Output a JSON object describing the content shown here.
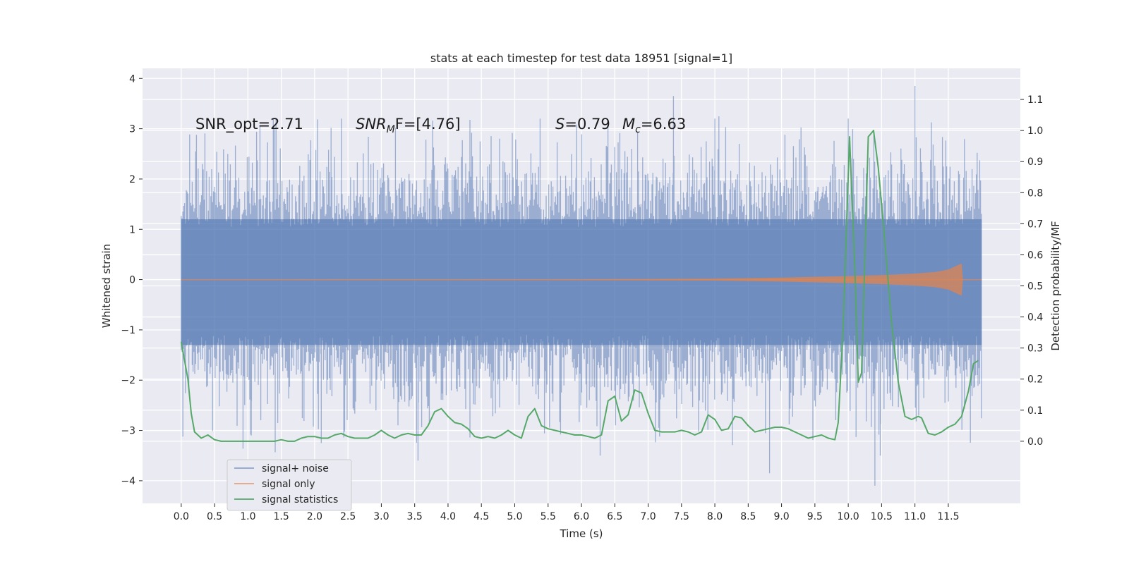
{
  "chart_data": {
    "type": "line",
    "title": "stats at each timestep for test data 18951 [signal=1]",
    "xlabel": "Time (s)",
    "ylabel": "Whitened strain",
    "ylabel_right": "Detection probability/MF",
    "xlim": [
      -0.58,
      12.58
    ],
    "ylim": [
      -4.45,
      4.2
    ],
    "ylim_right": [
      -0.2,
      1.2
    ],
    "x_ticks": [
      "0.0",
      "0.5",
      "1.0",
      "1.5",
      "2.0",
      "2.5",
      "3.0",
      "3.5",
      "4.0",
      "4.5",
      "5.0",
      "5.5",
      "6.0",
      "6.5",
      "7.0",
      "7.5",
      "8.0",
      "8.5",
      "9.0",
      "9.5",
      "10.0",
      "10.5",
      "11.0",
      "11.5"
    ],
    "y_ticks": [
      "4",
      "3",
      "2",
      "1",
      "0",
      "−1",
      "−2",
      "−3",
      "−4"
    ],
    "y_right_ticks": [
      "1.1",
      "1.0",
      "0.9",
      "0.8",
      "0.7",
      "0.6",
      "0.5",
      "0.4",
      "0.3",
      "0.2",
      "0.1",
      "0.0"
    ],
    "grid": true,
    "background": "#eaeaf2",
    "annotations": {
      "snr_opt": "SNR_opt=2.71",
      "snr_mf_main": "SNR",
      "snr_mf_sub": "M",
      "snr_mf_rest": "F=[4.76]",
      "s_var": "S",
      "s_val": "=0.79",
      "mc_var": "M",
      "mc_sub": "c",
      "mc_val": "=6.63"
    },
    "legend": {
      "position": "lower-left",
      "entries": [
        "signal+ noise",
        "signal only",
        "signal statistics"
      ]
    },
    "series": [
      {
        "name": "signal+ noise",
        "axis": "left",
        "color": "#4c72b0",
        "band": {
          "x_range": [
            0.0,
            12.0
          ],
          "core_range": [
            -1.3,
            1.2
          ],
          "typical_peak": 1.9,
          "max_observed": 3.85,
          "min_observed": -4.1
        }
      },
      {
        "name": "signal only",
        "axis": "left",
        "color": "#dd8452",
        "envelope": {
          "x": [
            0.0,
            2.0,
            4.0,
            6.0,
            8.0,
            9.0,
            10.0,
            10.5,
            11.0,
            11.3,
            11.5,
            11.6,
            11.7,
            11.72,
            12.0
          ],
          "amp": [
            0.0,
            0.003,
            0.005,
            0.008,
            0.02,
            0.04,
            0.07,
            0.09,
            0.12,
            0.15,
            0.2,
            0.26,
            0.32,
            0.0,
            0.0
          ]
        }
      },
      {
        "name": "signal statistics",
        "axis": "right",
        "color": "#55a868",
        "x": [
          0.0,
          0.1,
          0.15,
          0.2,
          0.3,
          0.4,
          0.5,
          0.6,
          0.7,
          0.8,
          0.9,
          1.0,
          1.1,
          1.2,
          1.3,
          1.4,
          1.5,
          1.6,
          1.7,
          1.8,
          1.9,
          2.0,
          2.1,
          2.2,
          2.3,
          2.4,
          2.5,
          2.6,
          2.7,
          2.8,
          2.9,
          3.0,
          3.1,
          3.2,
          3.3,
          3.4,
          3.5,
          3.6,
          3.7,
          3.8,
          3.9,
          4.0,
          4.1,
          4.2,
          4.3,
          4.4,
          4.5,
          4.6,
          4.7,
          4.8,
          4.9,
          5.0,
          5.1,
          5.2,
          5.3,
          5.4,
          5.5,
          5.6,
          5.7,
          5.8,
          5.9,
          6.0,
          6.1,
          6.2,
          6.3,
          6.4,
          6.5,
          6.6,
          6.7,
          6.8,
          6.9,
          7.0,
          7.1,
          7.2,
          7.3,
          7.4,
          7.5,
          7.6,
          7.7,
          7.8,
          7.9,
          8.0,
          8.1,
          8.2,
          8.3,
          8.4,
          8.5,
          8.6,
          8.7,
          8.8,
          8.9,
          9.0,
          9.1,
          9.2,
          9.3,
          9.4,
          9.5,
          9.6,
          9.7,
          9.8,
          9.85,
          9.92,
          10.02,
          10.1,
          10.15,
          10.2,
          10.3,
          10.38,
          10.45,
          10.55,
          10.65,
          10.75,
          10.85,
          10.95,
          11.05,
          11.1,
          11.15,
          11.2,
          11.3,
          11.4,
          11.5,
          11.6,
          11.7,
          11.8,
          11.88,
          11.95
        ],
        "y": [
          0.32,
          0.2,
          0.09,
          0.03,
          0.01,
          0.02,
          0.005,
          0.0,
          0.0,
          0.0,
          0.0,
          0.0,
          0.0,
          0.0,
          0.0,
          0.0,
          0.005,
          0.0,
          0.0,
          0.01,
          0.015,
          0.015,
          0.01,
          0.01,
          0.02,
          0.025,
          0.015,
          0.01,
          0.01,
          0.01,
          0.02,
          0.035,
          0.02,
          0.01,
          0.02,
          0.025,
          0.02,
          0.02,
          0.05,
          0.095,
          0.105,
          0.08,
          0.06,
          0.055,
          0.04,
          0.015,
          0.01,
          0.015,
          0.01,
          0.02,
          0.035,
          0.02,
          0.01,
          0.08,
          0.105,
          0.05,
          0.04,
          0.035,
          0.03,
          0.025,
          0.02,
          0.02,
          0.015,
          0.01,
          0.02,
          0.13,
          0.145,
          0.065,
          0.085,
          0.165,
          0.155,
          0.09,
          0.035,
          0.03,
          0.03,
          0.03,
          0.035,
          0.03,
          0.02,
          0.03,
          0.085,
          0.07,
          0.035,
          0.04,
          0.08,
          0.075,
          0.05,
          0.03,
          0.035,
          0.04,
          0.045,
          0.045,
          0.04,
          0.03,
          0.02,
          0.01,
          0.015,
          0.02,
          0.01,
          0.005,
          0.06,
          0.35,
          0.98,
          0.55,
          0.19,
          0.22,
          0.98,
          1.0,
          0.88,
          0.64,
          0.38,
          0.19,
          0.08,
          0.07,
          0.08,
          0.075,
          0.05,
          0.025,
          0.02,
          0.03,
          0.045,
          0.055,
          0.08,
          0.16,
          0.25,
          0.26
        ]
      }
    ]
  }
}
